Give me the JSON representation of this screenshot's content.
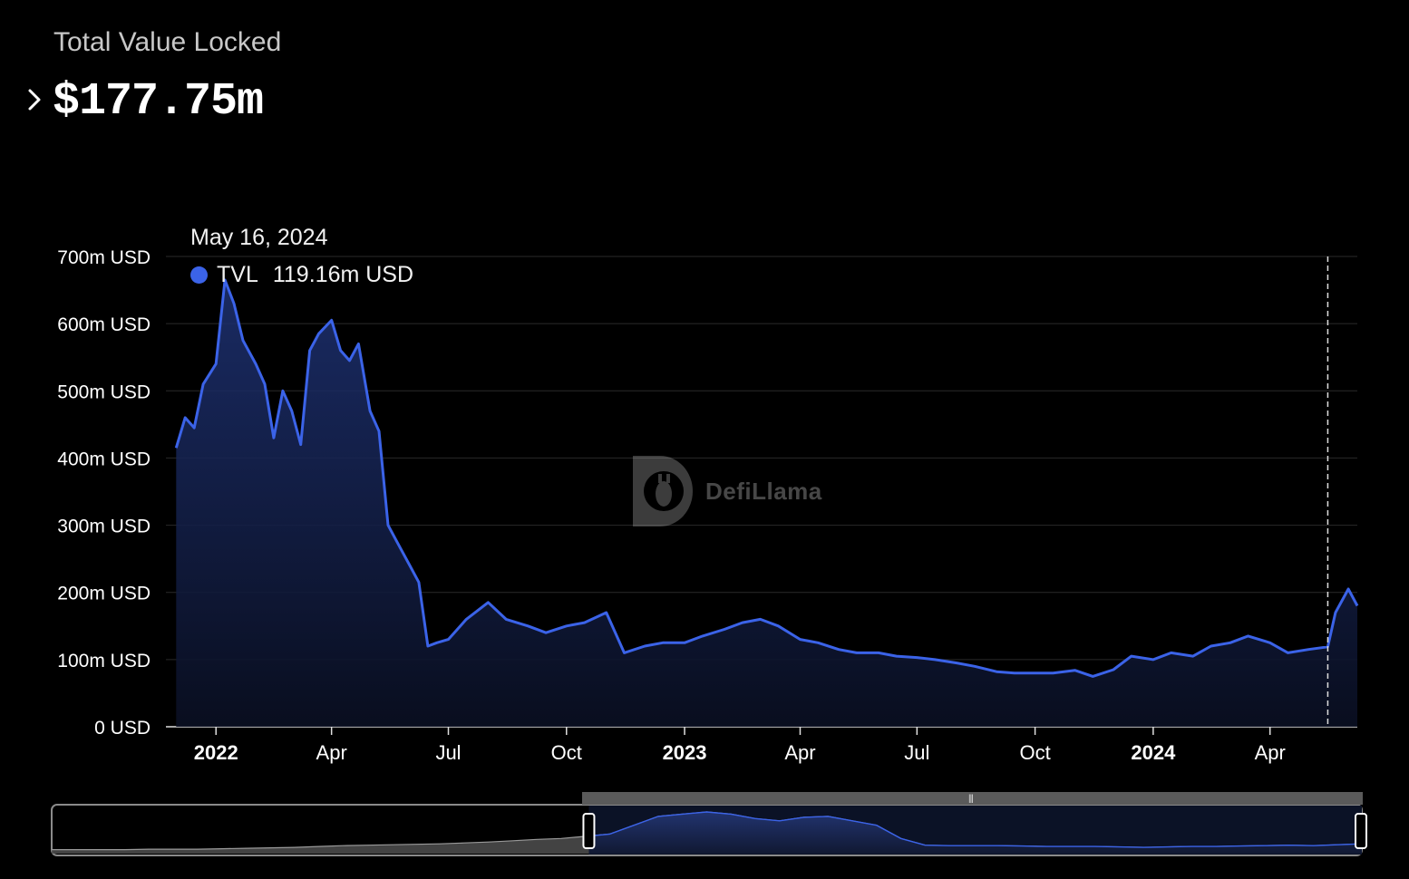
{
  "header": {
    "label": "Total Value Locked",
    "value": "$177.75m"
  },
  "tooltip": {
    "date": "May 16, 2024",
    "series": "TVL",
    "value": "119.16m USD"
  },
  "watermark": {
    "text": "DefiLlama"
  },
  "colors": {
    "line": "#3b63e8",
    "grid": "#2a2a2a",
    "axis": "#ffffff",
    "brush_unselected": "#9a9a9a"
  },
  "chart_data": {
    "type": "area",
    "series": [
      {
        "name": "TVL",
        "x": [
          "2021-12-01",
          "2021-12-08",
          "2021-12-15",
          "2021-12-22",
          "2022-01-01",
          "2022-01-08",
          "2022-01-15",
          "2022-01-22",
          "2022-02-01",
          "2022-02-08",
          "2022-02-15",
          "2022-02-22",
          "2022-03-01",
          "2022-03-08",
          "2022-03-15",
          "2022-03-22",
          "2022-04-01",
          "2022-04-08",
          "2022-04-15",
          "2022-04-22",
          "2022-05-01",
          "2022-05-08",
          "2022-05-15",
          "2022-05-22",
          "2022-06-01",
          "2022-06-08",
          "2022-06-15",
          "2022-06-22",
          "2022-07-01",
          "2022-07-15",
          "2022-08-01",
          "2022-08-15",
          "2022-09-01",
          "2022-09-15",
          "2022-10-01",
          "2022-10-15",
          "2022-11-01",
          "2022-11-15",
          "2022-12-01",
          "2022-12-15",
          "2023-01-01",
          "2023-01-15",
          "2023-02-01",
          "2023-02-15",
          "2023-03-01",
          "2023-03-15",
          "2023-04-01",
          "2023-04-15",
          "2023-05-01",
          "2023-05-15",
          "2023-06-01",
          "2023-06-15",
          "2023-07-01",
          "2023-07-15",
          "2023-08-01",
          "2023-08-15",
          "2023-09-01",
          "2023-09-15",
          "2023-10-01",
          "2023-10-15",
          "2023-11-01",
          "2023-11-15",
          "2023-12-01",
          "2023-12-15",
          "2024-01-01",
          "2024-01-15",
          "2024-02-01",
          "2024-02-15",
          "2024-03-01",
          "2024-03-15",
          "2024-04-01",
          "2024-04-15",
          "2024-05-01",
          "2024-05-16",
          "2024-05-22",
          "2024-06-01",
          "2024-06-08"
        ],
        "values": [
          415,
          460,
          445,
          510,
          540,
          665,
          630,
          575,
          540,
          510,
          430,
          500,
          470,
          420,
          560,
          585,
          605,
          560,
          545,
          570,
          470,
          440,
          300,
          275,
          240,
          215,
          120,
          125,
          130,
          160,
          185,
          160,
          150,
          140,
          150,
          155,
          170,
          110,
          120,
          125,
          125,
          135,
          145,
          155,
          160,
          150,
          130,
          125,
          115,
          110,
          110,
          105,
          103,
          100,
          95,
          90,
          82,
          80,
          80,
          80,
          84,
          75,
          85,
          105,
          100,
          110,
          105,
          120,
          125,
          135,
          125,
          110,
          115,
          119,
          170,
          205,
          180
        ]
      }
    ],
    "xlabel": "",
    "ylabel": "",
    "ylim": [
      0,
      700
    ],
    "y_ticks": [
      "0 USD",
      "100m USD",
      "200m USD",
      "300m USD",
      "400m USD",
      "500m USD",
      "600m USD",
      "700m USD"
    ],
    "y_tick_values": [
      0,
      100,
      200,
      300,
      400,
      500,
      600,
      700
    ],
    "x_ticks": [
      {
        "label": "2022",
        "date": "2022-01-01",
        "bold": true
      },
      {
        "label": "Apr",
        "date": "2022-04-01",
        "bold": false
      },
      {
        "label": "Jul",
        "date": "2022-07-01",
        "bold": false
      },
      {
        "label": "Oct",
        "date": "2022-10-01",
        "bold": false
      },
      {
        "label": "2023",
        "date": "2023-01-01",
        "bold": true
      },
      {
        "label": "Apr",
        "date": "2023-04-01",
        "bold": false
      },
      {
        "label": "Jul",
        "date": "2023-07-01",
        "bold": false
      },
      {
        "label": "Oct",
        "date": "2023-10-01",
        "bold": false
      },
      {
        "label": "2024",
        "date": "2024-01-01",
        "bold": true
      },
      {
        "label": "Apr",
        "date": "2024-04-01",
        "bold": false
      }
    ],
    "x_range": [
      "2021-11-23",
      "2024-06-08"
    ],
    "hover_date": "2024-05-16",
    "grid": true,
    "legend": "tooltip"
  },
  "overview": {
    "values": [
      5,
      5,
      5,
      5,
      6,
      6,
      6,
      7,
      8,
      9,
      10,
      12,
      14,
      15,
      16,
      17,
      18,
      20,
      22,
      25,
      28,
      30,
      35,
      40,
      60,
      80,
      85,
      90,
      85,
      75,
      70,
      78,
      80,
      70,
      60,
      30,
      15,
      14,
      14,
      14,
      13,
      12,
      12,
      12,
      11,
      10,
      11,
      12,
      12,
      13,
      14,
      15,
      14,
      16,
      18
    ],
    "selected_fraction": [
      0.41,
      1.0
    ]
  }
}
